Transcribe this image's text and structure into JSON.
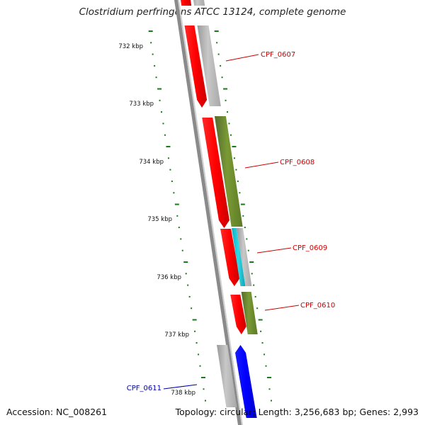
{
  "title": "Clostridium perfringens ATCC 13124, complete genome",
  "footer": {
    "accession": "Accession: NC_008261",
    "stats": "Topology: circular; Length: 3,256,683 bp; Genes: 2,993"
  },
  "scale_labels": [
    "732 kbp",
    "733 kbp",
    "734 kbp",
    "735 kbp",
    "736 kbp",
    "737 kbp",
    "738 kbp"
  ],
  "gene_labels": [
    {
      "text": "CPF_0607",
      "color": "#cc0000"
    },
    {
      "text": "CPF_0608",
      "color": "#cc0000"
    },
    {
      "text": "CPF_0609",
      "color": "#cc0000"
    },
    {
      "text": "CPF_0610",
      "color": "#cc0000"
    },
    {
      "text": "CPF_0611",
      "color": "#0000aa"
    }
  ],
  "colors": {
    "forward_strand": "#ff0000",
    "reverse_strand": "#0000ff",
    "tick": "#1a7a1a",
    "backbone": "#888888",
    "cog_gray": "#bbbbbb",
    "cog_olive": "#6b8e23",
    "cog_cyan": "#20c0d0"
  }
}
